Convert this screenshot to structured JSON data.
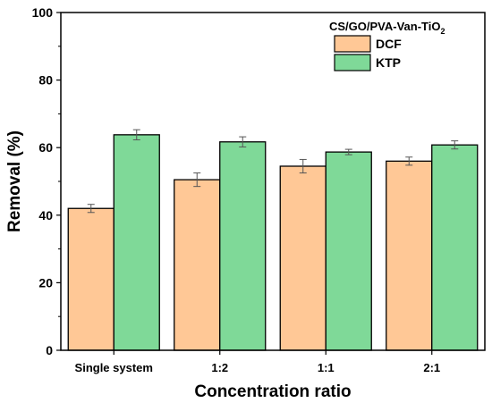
{
  "chart_data": {
    "type": "bar",
    "title": "",
    "legend_title": "CS/GO/PVA-Van-TiO",
    "legend_title_subscript": "2",
    "legend_position": "top-right",
    "xlabel": "Concentration ratio",
    "ylabel": "Removal (%)",
    "ylim": [
      0,
      100
    ],
    "yticks": [
      "0",
      "20",
      "40",
      "60",
      "80",
      "100"
    ],
    "grid": false,
    "categories": [
      "Single system",
      "1:2",
      "1:1",
      "2:1"
    ],
    "series": [
      {
        "name": "DCF",
        "color": "#FFC896",
        "values": [
          42.0,
          50.5,
          54.5,
          56.0
        ],
        "errors": [
          1.2,
          2.0,
          2.0,
          1.2
        ]
      },
      {
        "name": "KTP",
        "color": "#7FD998",
        "values": [
          63.8,
          61.7,
          58.7,
          60.8
        ],
        "errors": [
          1.5,
          1.5,
          0.8,
          1.2
        ]
      }
    ]
  }
}
